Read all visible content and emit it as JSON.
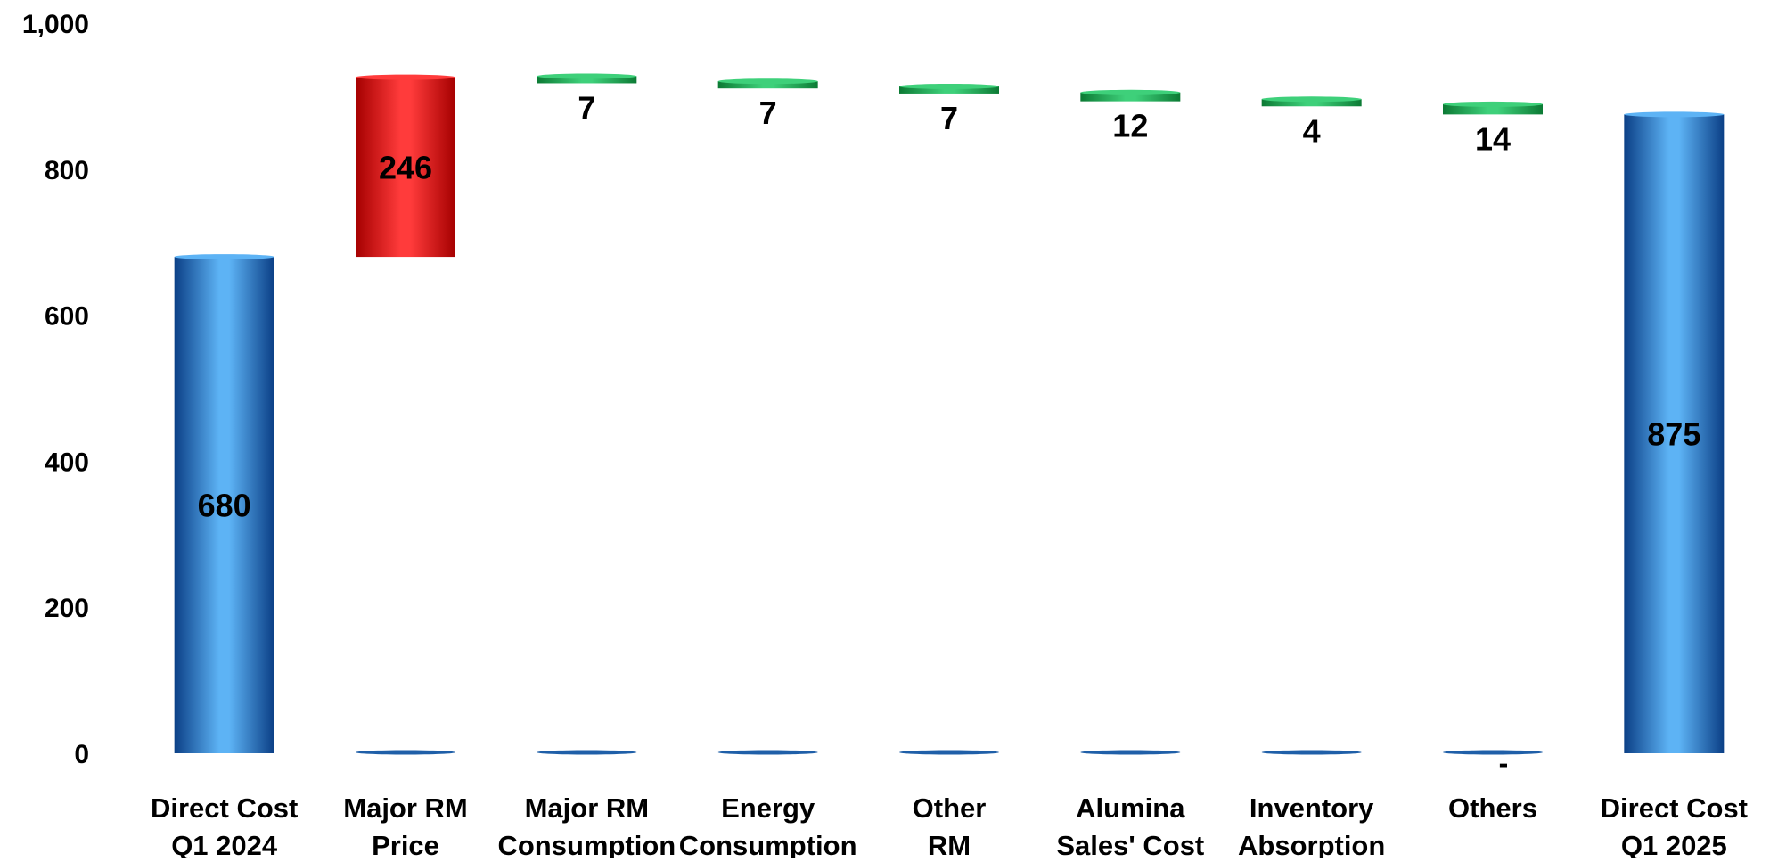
{
  "chart_data": {
    "type": "bar",
    "subtype": "waterfall",
    "categories": [
      [
        "Direct Cost",
        "Q1 2024"
      ],
      [
        "Major RM",
        "Price"
      ],
      [
        "Major RM",
        "Consumption"
      ],
      [
        "Energy",
        "Consumption"
      ],
      [
        "Other",
        "RM"
      ],
      [
        "Alumina",
        "Sales' Cost"
      ],
      [
        "Inventory",
        "Absorption"
      ],
      [
        "Others"
      ],
      [
        "Direct Cost",
        "Q1 2025"
      ]
    ],
    "values": [
      680,
      246,
      -7,
      -7,
      -7,
      -12,
      -4,
      -14,
      875
    ],
    "bar_kinds": [
      "total",
      "increase",
      "decrease",
      "decrease",
      "decrease",
      "decrease",
      "decrease",
      "decrease",
      "total"
    ],
    "data_labels": [
      "680",
      "246",
      "7",
      "7",
      "7",
      "12",
      "4",
      "14",
      "875"
    ],
    "extra_labels": [
      {
        "category_index": 7,
        "text": "-"
      }
    ],
    "y_ticks": [
      "0",
      "200",
      "400",
      "600",
      "800",
      "1,000"
    ],
    "ylim": [
      0,
      1000
    ],
    "grid": false,
    "legend": "none",
    "title": "",
    "xlabel": "",
    "ylabel": "",
    "colors": {
      "total_dark": "#0b3f86",
      "total_light": "#5db3f5",
      "increase_dark": "#a50000",
      "increase_light": "#ff3b3b",
      "decrease_dark": "#0c7a34",
      "decrease_light": "#3ed07a",
      "baseline_marker": "#1f5fa8",
      "text": "#000000"
    }
  }
}
